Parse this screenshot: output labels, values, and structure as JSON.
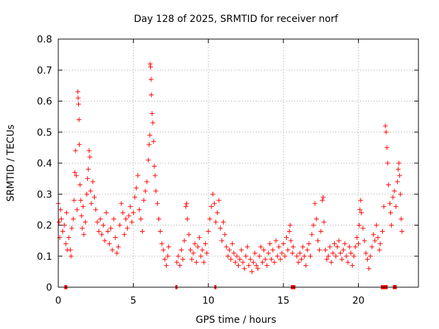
{
  "chart_data": {
    "type": "scatter",
    "title": "Day 128 of 2025, SRMTID for receiver norf",
    "xlabel": "GPS time / hours",
    "ylabel": "SRMTID / TECUs",
    "xlim": [
      0,
      24
    ],
    "ylim": [
      0,
      0.8
    ],
    "x_ticks": [
      0,
      5,
      10,
      15,
      20
    ],
    "x_tick_labels": [
      "0",
      "5",
      "10",
      "15",
      "20"
    ],
    "y_ticks": [
      0,
      0.1,
      0.2,
      0.3,
      0.4,
      0.5,
      0.6,
      0.7,
      0.8
    ],
    "y_tick_labels": [
      "0",
      "0.1",
      "0.2",
      "0.3",
      "0.4",
      "0.5",
      "0.6",
      "0.7",
      "0.8"
    ],
    "grid": true,
    "marker": "+",
    "color": "#ff0000",
    "series": [
      {
        "name": "SRMTID",
        "points": [
          [
            0.0,
            0.27
          ],
          [
            0.05,
            0.21
          ],
          [
            0.1,
            0.16
          ],
          [
            0.15,
            0.25
          ],
          [
            0.2,
            0.22
          ],
          [
            0.3,
            0.18
          ],
          [
            0.4,
            0.2
          ],
          [
            0.5,
            0.14
          ],
          [
            0.55,
            0.24
          ],
          [
            0.6,
            0.12
          ],
          [
            0.7,
            0.16
          ],
          [
            0.8,
            0.12
          ],
          [
            0.85,
            0.1
          ],
          [
            0.9,
            0.19
          ],
          [
            1.0,
            0.22
          ],
          [
            1.05,
            0.28
          ],
          [
            1.1,
            0.37
          ],
          [
            1.15,
            0.44
          ],
          [
            1.2,
            0.36
          ],
          [
            1.25,
            0.25
          ],
          [
            1.3,
            0.63
          ],
          [
            1.32,
            0.61
          ],
          [
            1.35,
            0.59
          ],
          [
            1.38,
            0.54
          ],
          [
            1.4,
            0.46
          ],
          [
            1.45,
            0.33
          ],
          [
            1.5,
            0.28
          ],
          [
            1.55,
            0.23
          ],
          [
            1.6,
            0.19
          ],
          [
            1.65,
            0.26
          ],
          [
            1.7,
            0.17
          ],
          [
            1.8,
            0.21
          ],
          [
            1.9,
            0.3
          ],
          [
            1.95,
            0.35
          ],
          [
            2.0,
            0.38
          ],
          [
            2.05,
            0.44
          ],
          [
            2.1,
            0.42
          ],
          [
            2.15,
            0.31
          ],
          [
            2.2,
            0.27
          ],
          [
            2.3,
            0.34
          ],
          [
            2.4,
            0.29
          ],
          [
            2.5,
            0.25
          ],
          [
            2.6,
            0.21
          ],
          [
            2.7,
            0.18
          ],
          [
            2.8,
            0.22
          ],
          [
            2.9,
            0.17
          ],
          [
            3.0,
            0.2
          ],
          [
            3.1,
            0.15
          ],
          [
            3.2,
            0.24
          ],
          [
            3.3,
            0.18
          ],
          [
            3.4,
            0.14
          ],
          [
            3.5,
            0.19
          ],
          [
            3.6,
            0.12
          ],
          [
            3.7,
            0.22
          ],
          [
            3.8,
            0.16
          ],
          [
            3.9,
            0.11
          ],
          [
            4.0,
            0.13
          ],
          [
            4.1,
            0.2
          ],
          [
            4.2,
            0.27
          ],
          [
            4.3,
            0.24
          ],
          [
            4.4,
            0.17
          ],
          [
            4.5,
            0.22
          ],
          [
            4.6,
            0.19
          ],
          [
            4.7,
            0.23
          ],
          [
            4.8,
            0.26
          ],
          [
            4.9,
            0.21
          ],
          [
            5.0,
            0.24
          ],
          [
            5.1,
            0.29
          ],
          [
            5.2,
            0.32
          ],
          [
            5.3,
            0.36
          ],
          [
            5.4,
            0.25
          ],
          [
            5.5,
            0.22
          ],
          [
            5.6,
            0.18
          ],
          [
            5.7,
            0.28
          ],
          [
            5.8,
            0.31
          ],
          [
            5.9,
            0.34
          ],
          [
            6.0,
            0.41
          ],
          [
            6.05,
            0.46
          ],
          [
            6.1,
            0.49
          ],
          [
            6.12,
            0.72
          ],
          [
            6.15,
            0.71
          ],
          [
            6.18,
            0.67
          ],
          [
            6.2,
            0.62
          ],
          [
            6.25,
            0.56
          ],
          [
            6.3,
            0.53
          ],
          [
            6.35,
            0.47
          ],
          [
            6.4,
            0.39
          ],
          [
            6.45,
            0.36
          ],
          [
            6.5,
            0.31
          ],
          [
            6.6,
            0.27
          ],
          [
            6.7,
            0.22
          ],
          [
            6.8,
            0.18
          ],
          [
            6.9,
            0.14
          ],
          [
            7.0,
            0.12
          ],
          [
            7.1,
            0.09
          ],
          [
            7.2,
            0.07
          ],
          [
            7.3,
            0.1
          ],
          [
            7.35,
            0.13
          ],
          [
            7.9,
            0.08
          ],
          [
            8.0,
            0.1
          ],
          [
            8.1,
            0.07
          ],
          [
            8.2,
            0.12
          ],
          [
            8.3,
            0.09
          ],
          [
            8.4,
            0.15
          ],
          [
            8.5,
            0.26
          ],
          [
            8.55,
            0.27
          ],
          [
            8.6,
            0.22
          ],
          [
            8.7,
            0.17
          ],
          [
            8.8,
            0.12
          ],
          [
            8.9,
            0.09
          ],
          [
            9.0,
            0.11
          ],
          [
            9.1,
            0.14
          ],
          [
            9.2,
            0.08
          ],
          [
            9.3,
            0.13
          ],
          [
            9.4,
            0.16
          ],
          [
            9.5,
            0.1
          ],
          [
            9.6,
            0.12
          ],
          [
            9.7,
            0.08
          ],
          [
            9.8,
            0.14
          ],
          [
            9.9,
            0.11
          ],
          [
            10.0,
            0.18
          ],
          [
            10.1,
            0.22
          ],
          [
            10.2,
            0.26
          ],
          [
            10.3,
            0.3
          ],
          [
            10.4,
            0.27
          ],
          [
            10.5,
            0.21
          ],
          [
            10.6,
            0.24
          ],
          [
            10.7,
            0.28
          ],
          [
            10.8,
            0.19
          ],
          [
            10.9,
            0.15
          ],
          [
            11.0,
            0.21
          ],
          [
            11.1,
            0.17
          ],
          [
            11.2,
            0.13
          ],
          [
            11.3,
            0.1
          ],
          [
            11.4,
            0.12
          ],
          [
            11.5,
            0.09
          ],
          [
            11.6,
            0.14
          ],
          [
            11.7,
            0.11
          ],
          [
            11.8,
            0.08
          ],
          [
            11.9,
            0.1
          ],
          [
            12.0,
            0.07
          ],
          [
            12.1,
            0.09
          ],
          [
            12.2,
            0.12
          ],
          [
            12.3,
            0.08
          ],
          [
            12.4,
            0.06
          ],
          [
            12.5,
            0.1
          ],
          [
            12.6,
            0.13
          ],
          [
            12.7,
            0.07
          ],
          [
            12.8,
            0.09
          ],
          [
            12.9,
            0.05
          ],
          [
            13.0,
            0.08
          ],
          [
            13.1,
            0.11
          ],
          [
            13.2,
            0.07
          ],
          [
            13.3,
            0.06
          ],
          [
            13.4,
            0.1
          ],
          [
            13.5,
            0.13
          ],
          [
            13.6,
            0.08
          ],
          [
            13.7,
            0.12
          ],
          [
            13.8,
            0.09
          ],
          [
            13.9,
            0.07
          ],
          [
            14.0,
            0.11
          ],
          [
            14.1,
            0.14
          ],
          [
            14.2,
            0.09
          ],
          [
            14.3,
            0.12
          ],
          [
            14.4,
            0.08
          ],
          [
            14.5,
            0.15
          ],
          [
            14.6,
            0.1
          ],
          [
            14.7,
            0.13
          ],
          [
            14.8,
            0.09
          ],
          [
            14.9,
            0.11
          ],
          [
            15.0,
            0.14
          ],
          [
            15.1,
            0.1
          ],
          [
            15.2,
            0.16
          ],
          [
            15.3,
            0.12
          ],
          [
            15.4,
            0.18
          ],
          [
            15.45,
            0.2
          ],
          [
            15.5,
            0.15
          ],
          [
            15.6,
            0.11
          ],
          [
            15.65,
            0.13
          ],
          [
            15.9,
            0.1
          ],
          [
            16.0,
            0.08
          ],
          [
            16.1,
            0.11
          ],
          [
            16.2,
            0.09
          ],
          [
            16.3,
            0.13
          ],
          [
            16.4,
            0.1
          ],
          [
            16.5,
            0.07
          ],
          [
            16.6,
            0.12
          ],
          [
            16.7,
            0.14
          ],
          [
            16.8,
            0.1
          ],
          [
            16.9,
            0.17
          ],
          [
            17.0,
            0.2
          ],
          [
            17.1,
            0.27
          ],
          [
            17.2,
            0.22
          ],
          [
            17.3,
            0.15
          ],
          [
            17.4,
            0.12
          ],
          [
            17.5,
            0.18
          ],
          [
            17.6,
            0.28
          ],
          [
            17.65,
            0.29
          ],
          [
            17.7,
            0.21
          ],
          [
            17.8,
            0.12
          ],
          [
            17.9,
            0.09
          ],
          [
            18.0,
            0.1
          ],
          [
            18.1,
            0.13
          ],
          [
            18.2,
            0.08
          ],
          [
            18.3,
            0.11
          ],
          [
            18.4,
            0.14
          ],
          [
            18.5,
            0.1
          ],
          [
            18.6,
            0.13
          ],
          [
            18.7,
            0.15
          ],
          [
            18.8,
            0.11
          ],
          [
            18.9,
            0.09
          ],
          [
            19.0,
            0.12
          ],
          [
            19.1,
            0.14
          ],
          [
            19.2,
            0.1
          ],
          [
            19.3,
            0.08
          ],
          [
            19.4,
            0.13
          ],
          [
            19.5,
            0.11
          ],
          [
            19.6,
            0.07
          ],
          [
            19.7,
            0.1
          ],
          [
            19.8,
            0.13
          ],
          [
            19.9,
            0.16
          ],
          [
            20.0,
            0.14
          ],
          [
            20.05,
            0.2
          ],
          [
            20.1,
            0.25
          ],
          [
            20.15,
            0.28
          ],
          [
            20.2,
            0.24
          ],
          [
            20.3,
            0.19
          ],
          [
            20.4,
            0.15
          ],
          [
            20.5,
            0.11
          ],
          [
            20.6,
            0.09
          ],
          [
            20.7,
            0.06
          ],
          [
            20.8,
            0.1
          ],
          [
            20.9,
            0.13
          ],
          [
            21.0,
            0.17
          ],
          [
            21.1,
            0.15
          ],
          [
            21.2,
            0.2
          ],
          [
            21.3,
            0.16
          ],
          [
            21.4,
            0.12
          ],
          [
            21.45,
            0.14
          ],
          [
            21.6,
            0.18
          ],
          [
            21.7,
            0.26
          ],
          [
            21.8,
            0.52
          ],
          [
            21.85,
            0.5
          ],
          [
            21.9,
            0.45
          ],
          [
            21.95,
            0.4
          ],
          [
            22.0,
            0.33
          ],
          [
            22.1,
            0.27
          ],
          [
            22.15,
            0.24
          ],
          [
            22.2,
            0.2
          ],
          [
            22.3,
            0.29
          ],
          [
            22.4,
            0.31
          ],
          [
            22.5,
            0.26
          ],
          [
            22.6,
            0.34
          ],
          [
            22.65,
            0.38
          ],
          [
            22.7,
            0.4
          ],
          [
            22.75,
            0.36
          ],
          [
            22.8,
            0.3
          ],
          [
            22.85,
            0.22
          ],
          [
            22.9,
            0.18
          ]
        ]
      }
    ],
    "rug_segments": [
      [
        0.4,
        0.6
      ],
      [
        7.8,
        7.9
      ],
      [
        10.4,
        10.5
      ],
      [
        15.5,
        15.8
      ],
      [
        21.5,
        21.95
      ],
      [
        22.3,
        22.55
      ]
    ]
  }
}
